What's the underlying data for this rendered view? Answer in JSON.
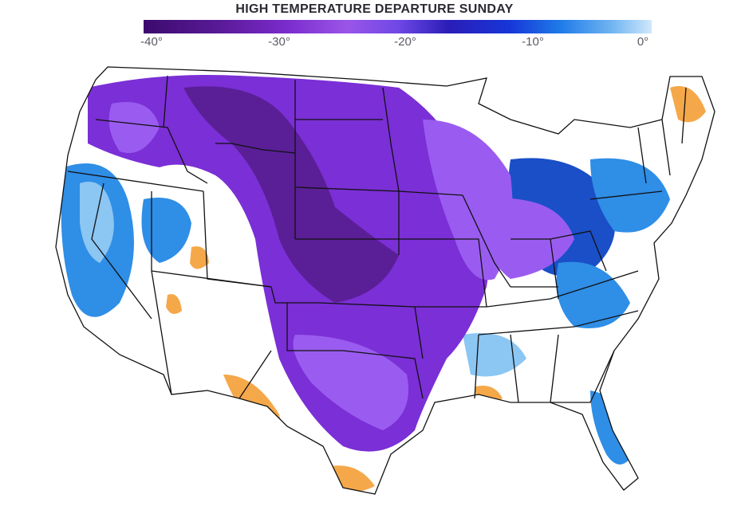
{
  "title": "HIGH TEMPERATURE DEPARTURE SUNDAY",
  "legend": {
    "ticks": [
      "-40°",
      "-30°",
      "-20°",
      "-10°",
      "0°"
    ],
    "colors": [
      "#3b0a6e",
      "#7a2bcc",
      "#9a55e8",
      "#2a1db8",
      "#1f7be8",
      "#6fb4f2",
      "#cfe8fc"
    ]
  },
  "map": {
    "colors": {
      "extreme_cold": "#5a1f96",
      "very_cold": "#7b2fd6",
      "cold": "#9a5cf0",
      "cool_deep": "#1a4fc8",
      "cool": "#2f8ee6",
      "mild": "#8cc6f3",
      "near_normal": "#ffffff",
      "warm": "#f5a84a",
      "borders": "#111111"
    }
  }
}
